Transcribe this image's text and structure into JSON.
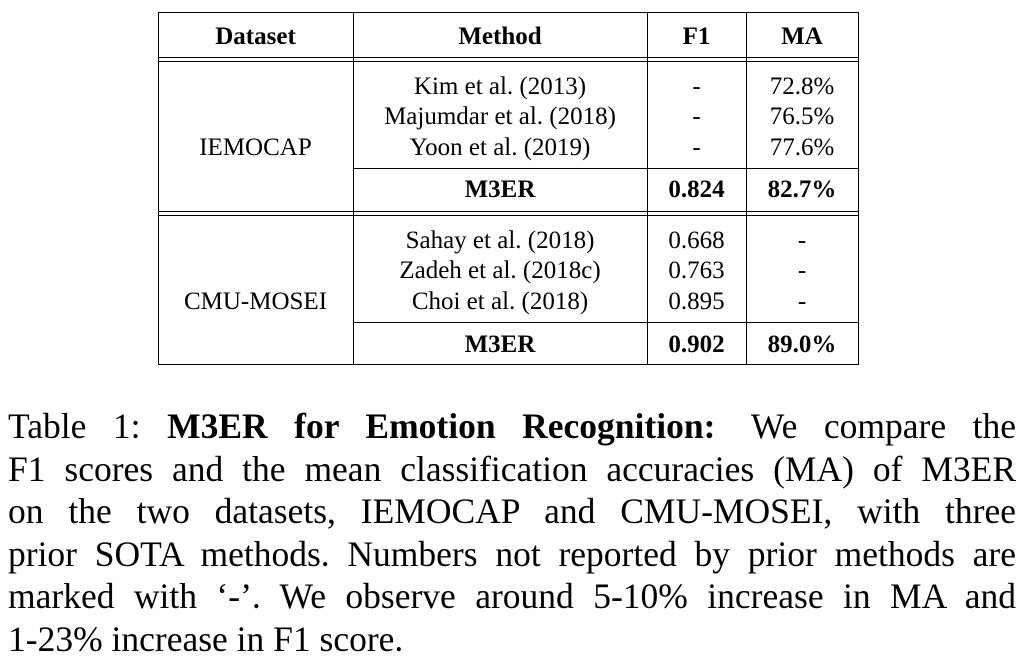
{
  "table": {
    "headers": [
      "Dataset",
      "Method",
      "F1",
      "MA"
    ],
    "groups": [
      {
        "dataset": "IEMOCAP",
        "rows": [
          [
            "Kim et al. (2013)",
            "-",
            "72.8%"
          ],
          [
            "Majumdar et al. (2018)",
            "-",
            "76.5%"
          ],
          [
            "Yoon et al. (2019)",
            "-",
            "77.6%"
          ]
        ],
        "best": [
          "M3ER",
          "0.824",
          "82.7%"
        ]
      },
      {
        "dataset": "CMU-MOSEI",
        "rows": [
          [
            "Sahay et al. (2018)",
            "0.668",
            "-"
          ],
          [
            "Zadeh et al. (2018c)",
            "0.763",
            "-"
          ],
          [
            "Choi et al. (2018)",
            "0.895",
            "-"
          ]
        ],
        "best": [
          "M3ER",
          "0.902",
          "89.0%"
        ]
      }
    ]
  },
  "caption": {
    "label": "Table 1:",
    "title": "M3ER for Emotion Recognition:",
    "lines": [
      "We compare the",
      "F1 scores and the mean classification accuracies (MA) of M3ER",
      "on the two datasets, IEMOCAP and CMU-MOSEI, with three",
      "prior SOTA methods. Numbers not reported by prior methods are",
      "marked with ‘-’. We observe around 5-10% increase in MA and",
      "1-23% increase in F1 score."
    ]
  }
}
